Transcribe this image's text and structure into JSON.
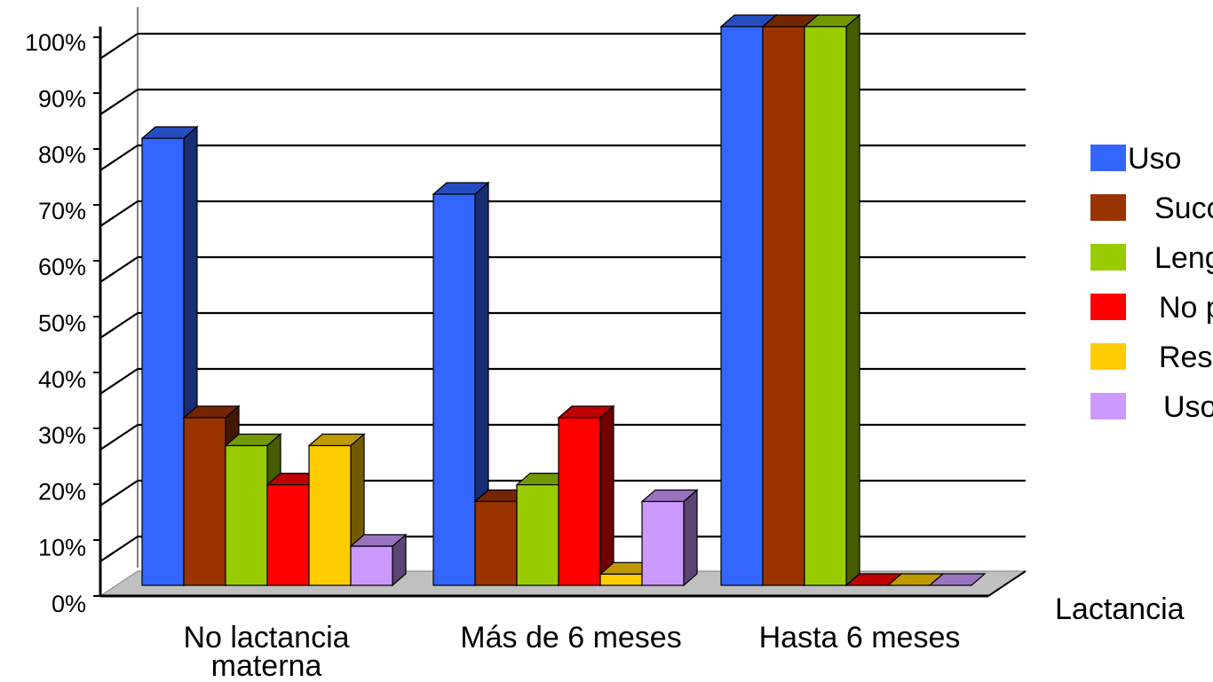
{
  "chart_data": {
    "type": "bar",
    "style": "3d-clustered",
    "categories": [
      "No lactancia\nmaterna",
      "Más de 6 meses",
      "Hasta 6 meses"
    ],
    "series": [
      {
        "name": "Uso",
        "color": "#3366FF",
        "values": [
          80,
          70,
          100
        ]
      },
      {
        "name": "Succ",
        "color": "#993300",
        "values": [
          30,
          15,
          100
        ]
      },
      {
        "name": "Leng",
        "color": "#99CC00",
        "values": [
          25,
          18,
          100
        ]
      },
      {
        "name": "No p",
        "color": "#FF0000",
        "values": [
          18,
          30,
          0
        ]
      },
      {
        "name": "Res",
        "color": "#FFCC00",
        "values": [
          25,
          2,
          0
        ]
      },
      {
        "name": "Uso",
        "color": "#CC99FF",
        "values": [
          7,
          15,
          0
        ]
      }
    ],
    "yticks": [
      "0%",
      "10%",
      "20%",
      "30%",
      "40%",
      "50%",
      "60%",
      "70%",
      "80%",
      "90%",
      "100%"
    ],
    "ylim": [
      0,
      100
    ],
    "xlabel": "Lactancia",
    "grid": true,
    "legend": "right"
  }
}
